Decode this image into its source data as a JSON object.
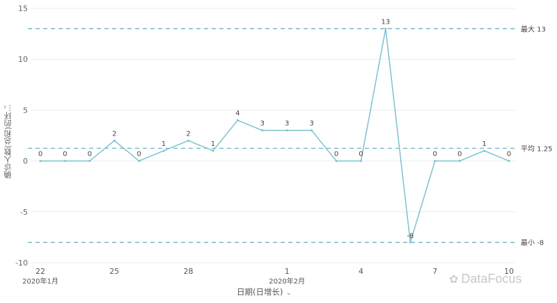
{
  "chart_data": {
    "type": "line",
    "ylabel": "确诊人数(总和)的环...",
    "xlabel": "日期(日增长)",
    "ylim": [
      -10,
      15
    ],
    "yticks": [
      15,
      10,
      5,
      0,
      -5,
      -10
    ],
    "x": [
      "2020-01-22",
      "2020-01-23",
      "2020-01-24",
      "2020-01-25",
      "2020-01-26",
      "2020-01-27",
      "2020-01-28",
      "2020-01-29",
      "2020-01-30",
      "2020-01-31",
      "2020-02-01",
      "2020-02-02",
      "2020-02-03",
      "2020-02-04",
      "2020-02-05",
      "2020-02-06",
      "2020-02-07",
      "2020-02-08",
      "2020-02-09",
      "2020-02-10"
    ],
    "values": [
      0,
      0,
      0,
      2,
      0,
      1,
      2,
      1,
      4,
      3,
      3,
      3,
      0,
      0,
      13,
      -8,
      0,
      0,
      1,
      0
    ],
    "xticks": [
      {
        "index": 0,
        "label": "22",
        "sub": "2020年1月"
      },
      {
        "index": 3,
        "label": "25",
        "sub": ""
      },
      {
        "index": 6,
        "label": "28",
        "sub": ""
      },
      {
        "index": 10,
        "label": "1",
        "sub": "2020年2月"
      },
      {
        "index": 13,
        "label": "4",
        "sub": ""
      },
      {
        "index": 16,
        "label": "7",
        "sub": ""
      },
      {
        "index": 19,
        "label": "10",
        "sub": ""
      }
    ],
    "reference_lines": [
      {
        "name": "最大",
        "value": 13,
        "label": "最大 13"
      },
      {
        "name": "平均",
        "value": 1.25,
        "label": "平均 1.25"
      },
      {
        "name": "最小",
        "value": -8,
        "label": "最小 -8"
      }
    ],
    "grid": true,
    "line_color": "#7cc2cf",
    "refline_color": "#5aa9c4"
  },
  "ui": {
    "ylabel_toggle": "›",
    "xlabel_toggle": "⌄",
    "watermark_text": "DataFocus",
    "watermark_icon": "wechat-icon"
  }
}
